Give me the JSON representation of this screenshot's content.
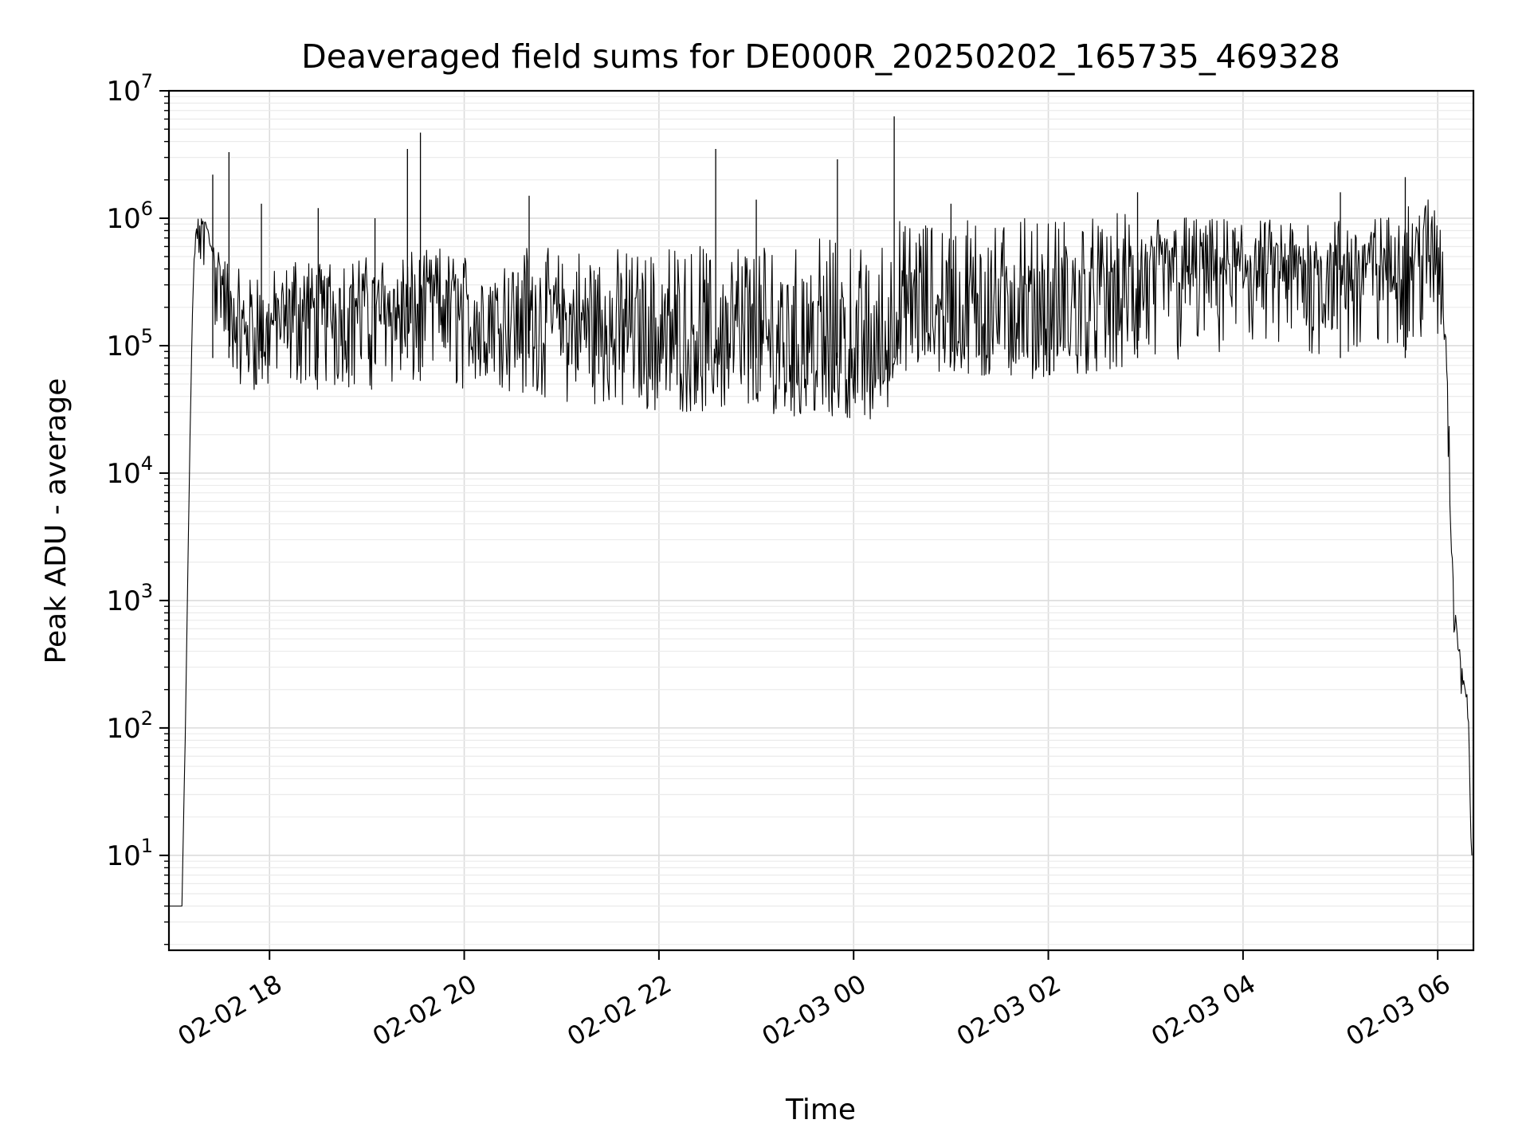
{
  "chart_data": {
    "type": "line",
    "title": "Deaveraged field sums for DE000R_20250202_165735_469328",
    "xlabel": "Time",
    "ylabel": "Peak ADU - average",
    "yscale": "log",
    "grid": true,
    "xlim": [
      "2025-02-02 16:58",
      "2025-02-03 06:22"
    ],
    "ylim": [
      1.8,
      10000000
    ],
    "x_ticks": [
      {
        "value": "2025-02-02 18:00",
        "label": "02-02 18"
      },
      {
        "value": "2025-02-02 20:00",
        "label": "02-02 20"
      },
      {
        "value": "2025-02-02 22:00",
        "label": "02-02 22"
      },
      {
        "value": "2025-02-03 00:00",
        "label": "02-03 00"
      },
      {
        "value": "2025-02-03 02:00",
        "label": "02-03 02"
      },
      {
        "value": "2025-02-03 04:00",
        "label": "02-03 04"
      },
      {
        "value": "2025-02-03 06:00",
        "label": "02-03 06"
      }
    ],
    "y_ticks": [
      {
        "value": 10,
        "base": "10",
        "exp": "1"
      },
      {
        "value": 100,
        "base": "10",
        "exp": "2"
      },
      {
        "value": 1000,
        "base": "10",
        "exp": "3"
      },
      {
        "value": 10000,
        "base": "10",
        "exp": "4"
      },
      {
        "value": 100000,
        "base": "10",
        "exp": "5"
      },
      {
        "value": 1000000,
        "base": "10",
        "exp": "6"
      },
      {
        "value": 10000000,
        "base": "10",
        "exp": "7"
      }
    ],
    "series": [
      {
        "color": "#000000",
        "x": [
          "2025-02-02 16:58",
          "2025-02-02 17:05",
          "2025-02-02 17:06",
          "2025-02-02 17:08",
          "2025-02-02 17:11",
          "2025-02-02 17:13",
          "2025-02-02 17:15",
          "2025-02-02 17:20",
          "2025-02-02 17:25",
          "2025-02-02 17:30",
          "2025-02-02 17:35",
          "2025-02-02 17:40",
          "2025-02-02 17:45",
          "2025-02-02 17:50",
          "2025-02-02 17:55",
          "2025-02-02 18:05",
          "2025-02-02 18:15",
          "2025-02-02 18:30",
          "2025-02-02 18:45",
          "2025-02-02 19:00",
          "2025-02-02 19:15",
          "2025-02-02 19:30",
          "2025-02-02 19:45",
          "2025-02-02 20:00",
          "2025-02-02 20:20",
          "2025-02-02 20:40",
          "2025-02-02 21:00",
          "2025-02-02 21:20",
          "2025-02-02 21:40",
          "2025-02-02 22:00",
          "2025-02-02 22:20",
          "2025-02-02 22:40",
          "2025-02-02 23:00",
          "2025-02-02 23:20",
          "2025-02-02 23:40",
          "2025-02-03 00:00",
          "2025-02-03 00:20",
          "2025-02-03 00:25",
          "2025-02-03 00:40",
          "2025-02-03 01:00",
          "2025-02-03 01:20",
          "2025-02-03 01:40",
          "2025-02-03 02:00",
          "2025-02-03 02:20",
          "2025-02-03 02:40",
          "2025-02-03 03:00",
          "2025-02-03 03:20",
          "2025-02-03 03:40",
          "2025-02-03 04:00",
          "2025-02-03 04:20",
          "2025-02-03 04:40",
          "2025-02-03 05:00",
          "2025-02-03 05:20",
          "2025-02-03 05:40",
          "2025-02-03 05:55",
          "2025-02-03 06:02",
          "2025-02-03 06:05",
          "2025-02-03 06:08",
          "2025-02-03 06:10",
          "2025-02-03 06:13",
          "2025-02-03 06:16",
          "2025-02-03 06:19",
          "2025-02-03 06:21"
        ],
        "y": [
          4,
          4,
          4,
          80,
          20000,
          300000,
          800000,
          900000,
          500000,
          300000,
          150000,
          120000,
          110000,
          100000,
          100000,
          120000,
          150000,
          130000,
          140000,
          150000,
          140000,
          150000,
          200000,
          110000,
          120000,
          130000,
          110000,
          100000,
          80000,
          80000,
          70000,
          60000,
          65000,
          60000,
          60000,
          55000,
          50000,
          100000,
          150000,
          120000,
          110000,
          120000,
          100000,
          120000,
          150000,
          200000,
          250000,
          300000,
          300000,
          350000,
          300000,
          300000,
          350000,
          400000,
          500000,
          450000,
          100000,
          5000,
          1000,
          400,
          200,
          100,
          10
        ],
        "low_envelope": [
          4,
          4,
          4,
          80,
          20000,
          200000,
          400000,
          300000,
          150000,
          80000,
          60000,
          50000,
          50000,
          45000,
          45000,
          45000,
          50000,
          45000,
          45000,
          45000,
          45000,
          45000,
          50000,
          45000,
          45000,
          40000,
          35000,
          35000,
          30000,
          30000,
          30000,
          30000,
          30000,
          28000,
          28000,
          27000,
          25000,
          60000,
          60000,
          55000,
          55000,
          55000,
          55000,
          60000,
          60000,
          65000,
          70000,
          75000,
          75000,
          80000,
          80000,
          80000,
          85000,
          90000,
          100000,
          100000,
          50000,
          3000,
          500,
          200,
          100,
          50,
          8
        ],
        "high_envelope": [
          4,
          4,
          4,
          80,
          20000,
          500000,
          1000000,
          1000000,
          700000,
          600000,
          500000,
          400000,
          400000,
          400000,
          400000,
          400000,
          500000,
          500000,
          500000,
          500000,
          500000,
          550000,
          600000,
          550000,
          600000,
          600000,
          600000,
          600000,
          600000,
          600000,
          600000,
          650000,
          650000,
          650000,
          700000,
          700000,
          700000,
          1000000,
          1000000,
          1000000,
          1000000,
          1000000,
          1000000,
          1000000,
          1100000,
          1100000,
          1100000,
          1000000,
          1000000,
          1000000,
          1000000,
          1000000,
          1000000,
          1200000,
          1500000,
          1500000,
          200000,
          10000,
          1000,
          500,
          300,
          150,
          15
        ]
      }
    ],
    "spikes": [
      {
        "x": "2025-02-02 17:25",
        "y": 2200000
      },
      {
        "x": "2025-02-02 17:35",
        "y": 3300000
      },
      {
        "x": "2025-02-02 17:55",
        "y": 1300000
      },
      {
        "x": "2025-02-02 18:30",
        "y": 1200000
      },
      {
        "x": "2025-02-02 19:05",
        "y": 1000000
      },
      {
        "x": "2025-02-02 19:25",
        "y": 3500000
      },
      {
        "x": "2025-02-02 19:33",
        "y": 4700000
      },
      {
        "x": "2025-02-02 20:40",
        "y": 1500000
      },
      {
        "x": "2025-02-02 22:35",
        "y": 3500000
      },
      {
        "x": "2025-02-02 23:00",
        "y": 1400000
      },
      {
        "x": "2025-02-02 23:50",
        "y": 2900000
      },
      {
        "x": "2025-02-03 00:25",
        "y": 6300000
      },
      {
        "x": "2025-02-03 01:00",
        "y": 1300000
      },
      {
        "x": "2025-02-03 02:55",
        "y": 1600000
      },
      {
        "x": "2025-02-03 05:00",
        "y": 1600000
      },
      {
        "x": "2025-02-03 05:40",
        "y": 2100000
      }
    ]
  }
}
